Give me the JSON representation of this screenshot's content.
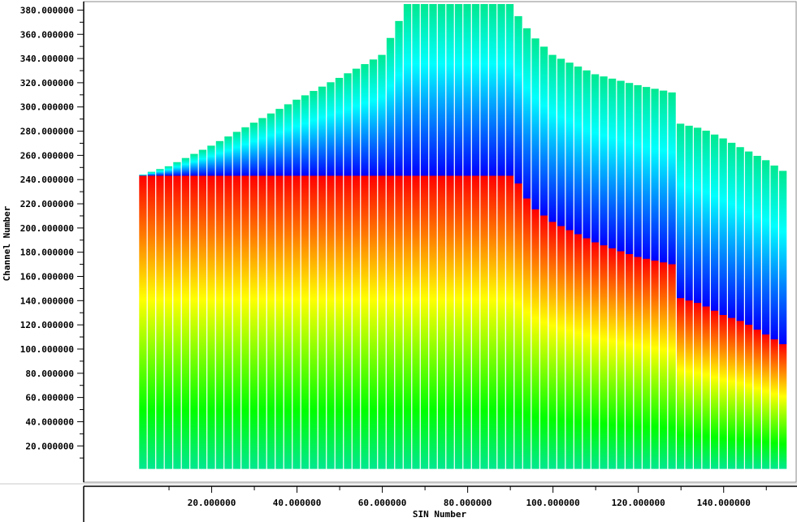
{
  "chart_data": {
    "type": "heatmap",
    "title": "",
    "xlabel": "SIN Number",
    "ylabel": "Channel Number",
    "xlim": [
      -10,
      157
    ],
    "ylim": [
      -10,
      387
    ],
    "x_ticks": [
      20,
      40,
      60,
      80,
      100,
      120,
      140
    ],
    "x_tick_labels": [
      "20.000000",
      "40.000000",
      "60.000000",
      "80.000000",
      "100.000000",
      "120.000000",
      "140.000000"
    ],
    "y_ticks": [
      20,
      40,
      60,
      80,
      100,
      120,
      140,
      160,
      180,
      200,
      220,
      240,
      260,
      280,
      300,
      320,
      340,
      360,
      380
    ],
    "y_tick_labels": [
      "20.000000",
      "40.000000",
      "60.000000",
      "80.000000",
      "100.000000",
      "120.000000",
      "140.000000",
      "160.000000",
      "180.000000",
      "200.000000",
      "220.000000",
      "240.000000",
      "260.000000",
      "280.000000",
      "300.000000",
      "320.000000",
      "340.000000",
      "360.000000",
      "380.000000"
    ],
    "grid": false,
    "sin_range": [
      3,
      155
    ],
    "column_separator_every": 2,
    "top_channel": {
      "x": [
        3,
        10,
        20,
        30,
        40,
        50,
        60,
        66,
        70,
        80,
        90,
        95,
        100,
        110,
        120,
        128,
        129,
        135,
        140,
        145,
        150,
        155
      ],
      "y": [
        243,
        251,
        268,
        287,
        306,
        324,
        343,
        385,
        385,
        385,
        385,
        360,
        343,
        327,
        318,
        312,
        287,
        282,
        274,
        265,
        256,
        245
      ]
    },
    "boundary_channel": {
      "x": [
        3,
        10,
        20,
        30,
        40,
        50,
        60,
        70,
        80,
        90,
        91,
        95,
        100,
        110,
        120,
        128,
        129,
        135,
        140,
        145,
        150,
        155
      ],
      "y": [
        243,
        243,
        243,
        243,
        243,
        243,
        243,
        243,
        243,
        243,
        243,
        218,
        205,
        188,
        176,
        170,
        143,
        137,
        128,
        122,
        112,
        102
      ]
    },
    "colorscale": [
      "#00e890",
      "#00ff00",
      "#ffff00",
      "#ff0000",
      "#0000ff",
      "#00ffff",
      "#00e890"
    ]
  }
}
